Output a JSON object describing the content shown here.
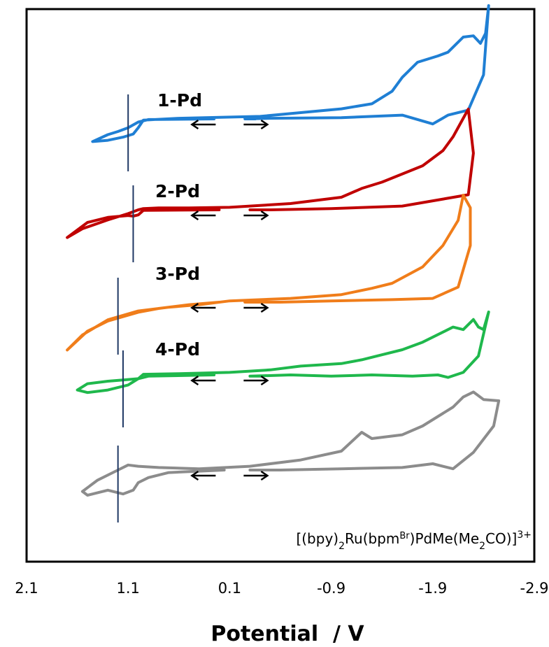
{
  "chart_data": {
    "type": "line",
    "title": "",
    "xlabel": "Potential  / V",
    "ylabel": "",
    "xlim": [
      2.1,
      -2.9
    ],
    "x_ticks": [
      "2.1",
      "1.1",
      "0.1",
      "-0.9",
      "-1.9",
      "-2.9"
    ],
    "x_tick_values": [
      2.1,
      1.1,
      0.1,
      -0.9,
      -1.9,
      -2.9
    ],
    "grid": false,
    "legend": "none",
    "annotation": {
      "before": "[(bpy)",
      "sub1": "2",
      "mid1": "Ru(bpm",
      "sup1": "Br",
      "mid2": ")PdMe(Me",
      "sub2": "2",
      "mid3": "CO)]",
      "sup2": "3+"
    },
    "series": [
      {
        "name": "1-Pd",
        "color": "#1f7fd4",
        "marker_x": 1.1,
        "x": [
          0.15,
          0.9,
          1.0,
          1.1,
          1.2,
          1.3,
          1.45,
          1.3,
          1.15,
          1.05,
          1.0,
          0.95,
          0.6,
          -0.2,
          -0.6,
          -1.0,
          -1.3,
          -1.5,
          -1.6,
          -1.75,
          -1.95,
          -2.05,
          -2.2,
          -2.3,
          -2.37,
          -2.42,
          -2.45,
          -2.4,
          -2.25,
          -2.05,
          -1.9,
          -1.6,
          -1.0,
          -0.3,
          -0.05
        ],
        "y": [
          0.0,
          -0.005,
          -0.025,
          -0.07,
          -0.1,
          -0.125,
          -0.18,
          -0.17,
          -0.145,
          -0.12,
          -0.07,
          -0.01,
          0.005,
          0.02,
          0.05,
          0.08,
          0.12,
          0.22,
          0.33,
          0.45,
          0.5,
          0.53,
          0.65,
          0.66,
          0.6,
          0.68,
          0.9,
          0.35,
          0.07,
          0.03,
          -0.04,
          0.03,
          0.01,
          0.005,
          0.0
        ]
      },
      {
        "name": "2-Pd",
        "color": "#c00000",
        "marker_x": 1.05,
        "x": [
          0.1,
          0.95,
          1.0,
          1.05,
          1.1,
          1.3,
          1.5,
          1.7,
          1.55,
          1.3,
          1.1,
          1.0,
          0.95,
          0.8,
          0.5,
          0.1,
          -0.5,
          -1.0,
          -1.2,
          -1.4,
          -1.8,
          -2.0,
          -2.1,
          -2.25,
          -2.3,
          -2.25,
          -1.6,
          -0.9,
          -0.3,
          -0.1
        ],
        "y": [
          0.0,
          -0.004,
          -0.04,
          -0.05,
          -0.045,
          -0.06,
          -0.1,
          -0.22,
          -0.15,
          -0.08,
          -0.03,
          0.0,
          0.01,
          0.015,
          0.015,
          0.02,
          0.05,
          0.1,
          0.17,
          0.22,
          0.35,
          0.47,
          0.58,
          0.8,
          0.45,
          0.12,
          0.03,
          0.01,
          0.0,
          0.0
        ]
      },
      {
        "name": "3-Pd",
        "color": "#f07d1a",
        "marker_x": 1.2,
        "x": [
          0.1,
          0.5,
          0.8,
          1.0,
          1.3,
          1.5,
          1.7,
          1.55,
          1.3,
          1.0,
          0.7,
          0.4,
          0.1,
          -0.5,
          -1.0,
          -1.3,
          -1.5,
          -1.8,
          -2.0,
          -2.15,
          -2.2,
          -2.27,
          -2.27,
          -2.15,
          -1.9,
          -1.5,
          -0.9,
          -0.4,
          -0.05
        ],
        "y": [
          0.0,
          -0.02,
          -0.05,
          -0.08,
          -0.15,
          -0.23,
          -0.38,
          -0.26,
          -0.14,
          -0.07,
          -0.04,
          -0.02,
          0.01,
          0.03,
          0.06,
          0.11,
          0.15,
          0.28,
          0.45,
          0.65,
          0.85,
          0.75,
          0.45,
          0.12,
          0.03,
          0.02,
          0.01,
          0.0,
          0.0
        ]
      },
      {
        "name": "4-Pd",
        "color": "#1fb84c",
        "marker_x": 1.15,
        "x": [
          0.15,
          0.9,
          1.0,
          1.15,
          1.3,
          1.5,
          1.6,
          1.5,
          1.3,
          1.1,
          1.0,
          0.95,
          0.6,
          0.1,
          -0.3,
          -0.6,
          -1.0,
          -1.2,
          -1.4,
          -1.6,
          -1.8,
          -2.0,
          -2.1,
          -2.2,
          -2.3,
          -2.35,
          -2.4,
          -2.45,
          -2.35,
          -2.2,
          -2.05,
          -1.95,
          -1.7,
          -1.3,
          -0.9,
          -0.5,
          -0.1
        ],
        "y": [
          0.0,
          -0.01,
          -0.03,
          -0.04,
          -0.05,
          -0.07,
          -0.12,
          -0.14,
          -0.12,
          -0.08,
          -0.03,
          0.005,
          0.01,
          0.02,
          0.04,
          0.07,
          0.09,
          0.12,
          0.16,
          0.2,
          0.26,
          0.34,
          0.38,
          0.36,
          0.44,
          0.38,
          0.36,
          0.5,
          0.15,
          0.02,
          -0.02,
          0.0,
          -0.01,
          0.0,
          -0.01,
          0.0,
          -0.01
        ]
      },
      {
        "name": "",
        "color": "#8c8c8c",
        "marker_x": 1.2,
        "x": [
          0.05,
          0.7,
          0.9,
          1.0,
          1.05,
          1.15,
          1.3,
          1.5,
          1.55,
          1.4,
          1.2,
          1.1,
          1.0,
          0.8,
          0.4,
          -0.1,
          -0.6,
          -1.0,
          -1.2,
          -1.3,
          -1.6,
          -1.8,
          -2.0,
          -2.1,
          -2.2,
          -2.3,
          -2.4,
          -2.55,
          -2.5,
          -2.3,
          -2.1,
          -1.9,
          -1.6,
          -1.0,
          -0.4,
          -0.1
        ],
        "y": [
          0.0,
          -0.02,
          -0.06,
          -0.1,
          -0.16,
          -0.19,
          -0.16,
          -0.2,
          -0.17,
          -0.08,
          0.0,
          0.04,
          0.03,
          0.02,
          0.01,
          0.03,
          0.08,
          0.15,
          0.3,
          0.25,
          0.28,
          0.35,
          0.45,
          0.5,
          0.58,
          0.62,
          0.56,
          0.55,
          0.35,
          0.14,
          0.01,
          0.05,
          0.02,
          0.01,
          0.0,
          0.0
        ]
      }
    ]
  }
}
